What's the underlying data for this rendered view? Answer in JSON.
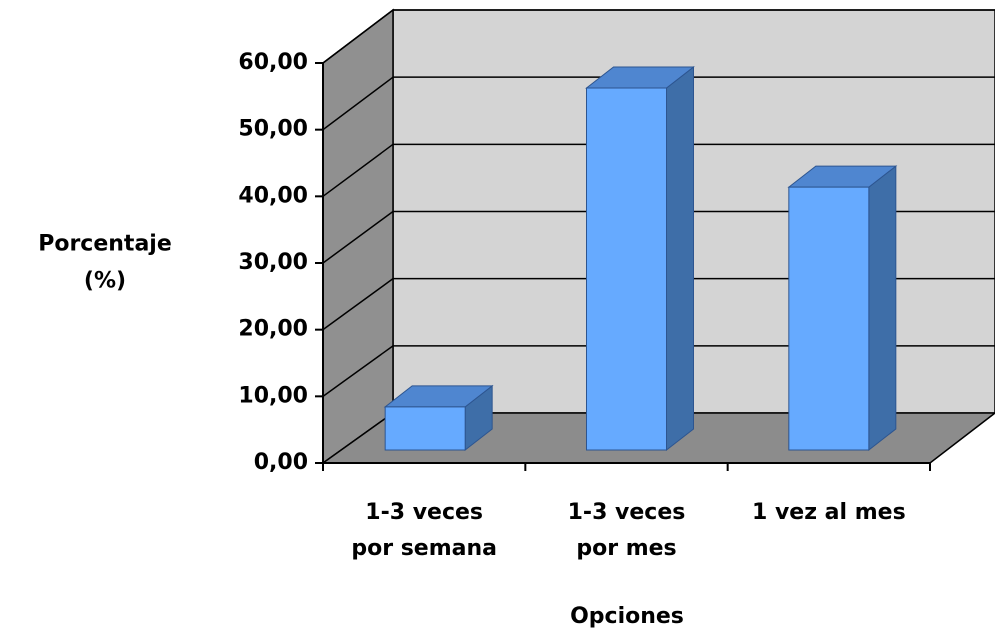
{
  "chart_data": {
    "type": "bar3d",
    "y_label": "Porcentaje (%)",
    "x_label": "Opciones",
    "categories": [
      "1-3 veces por semana",
      "1-3 veces por mes",
      "1 vez al mes"
    ],
    "values": [
      6.45,
      54.19,
      39.35
    ],
    "color": "#66aaff",
    "ylim": [
      0,
      60
    ],
    "yticks": [
      {
        "value": 0,
        "label": "0,00"
      },
      {
        "value": 10,
        "label": "10,00"
      },
      {
        "value": 20,
        "label": "20,00"
      },
      {
        "value": 30,
        "label": "30,00"
      },
      {
        "value": 40,
        "label": "40,00"
      },
      {
        "value": 50,
        "label": "50,00"
      },
      {
        "value": 60,
        "label": "60,00"
      }
    ],
    "grid": true
  }
}
